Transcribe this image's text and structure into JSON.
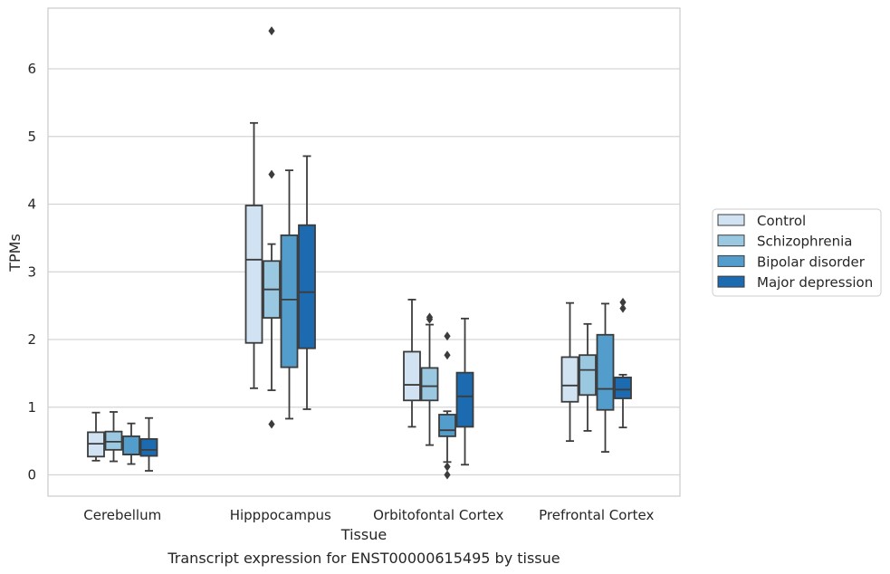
{
  "chart_data": {
    "type": "box",
    "xlabel": "Tissue",
    "ylabel": "TPMs",
    "caption": "Transcript expression for ENST00000615495 by tissue",
    "categories": [
      "Cerebellum",
      "Hipppocampus",
      "Orbitofontal Cortex",
      "Prefrontal Cortex"
    ],
    "y_ticks": [
      "0",
      "1",
      "2",
      "3",
      "4",
      "5",
      "6"
    ],
    "ylim": [
      -0.32,
      6.9
    ],
    "grid": "horizontal",
    "legend_position": "center-right",
    "series": [
      {
        "name": "Control",
        "color": "#d1e2f2",
        "boxes": [
          {
            "whisker_low": 0.21,
            "q1": 0.27,
            "median": 0.46,
            "q3": 0.63,
            "whisker_high": 0.92,
            "outliers": []
          },
          {
            "whisker_low": 1.28,
            "q1": 1.95,
            "median": 3.18,
            "q3": 3.98,
            "whisker_high": 5.2,
            "outliers": []
          },
          {
            "whisker_low": 0.71,
            "q1": 1.1,
            "median": 1.33,
            "q3": 1.82,
            "whisker_high": 2.59,
            "outliers": []
          },
          {
            "whisker_low": 0.5,
            "q1": 1.08,
            "median": 1.32,
            "q3": 1.74,
            "whisker_high": 2.54,
            "outliers": []
          }
        ]
      },
      {
        "name": "Schizophrenia",
        "color": "#9ac8e0",
        "boxes": [
          {
            "whisker_low": 0.2,
            "q1": 0.37,
            "median": 0.49,
            "q3": 0.64,
            "whisker_high": 0.93,
            "outliers": []
          },
          {
            "whisker_low": 1.25,
            "q1": 2.32,
            "median": 2.74,
            "q3": 3.16,
            "whisker_high": 3.41,
            "outliers": [
              6.56,
              4.44,
              0.75
            ]
          },
          {
            "whisker_low": 0.44,
            "q1": 1.1,
            "median": 1.31,
            "q3": 1.58,
            "whisker_high": 2.22,
            "outliers": [
              2.33,
              2.3
            ]
          },
          {
            "whisker_low": 0.65,
            "q1": 1.18,
            "median": 1.55,
            "q3": 1.77,
            "whisker_high": 2.23,
            "outliers": []
          }
        ]
      },
      {
        "name": "Bipolar disorder",
        "color": "#529dcc",
        "boxes": [
          {
            "whisker_low": 0.16,
            "q1": 0.3,
            "median": 0.3,
            "q3": 0.57,
            "whisker_high": 0.76,
            "outliers": []
          },
          {
            "whisker_low": 0.83,
            "q1": 1.59,
            "median": 2.59,
            "q3": 3.54,
            "whisker_high": 4.5,
            "outliers": []
          },
          {
            "whisker_low": 0.19,
            "q1": 0.57,
            "median": 0.66,
            "q3": 0.89,
            "whisker_high": 0.94,
            "outliers": [
              2.05,
              1.77,
              0.12,
              0.0
            ]
          },
          {
            "whisker_low": 0.34,
            "q1": 0.96,
            "median": 1.27,
            "q3": 2.07,
            "whisker_high": 2.53,
            "outliers": []
          }
        ]
      },
      {
        "name": "Major depression",
        "color": "#1c6aaf",
        "boxes": [
          {
            "whisker_low": 0.06,
            "q1": 0.28,
            "median": 0.37,
            "q3": 0.53,
            "whisker_high": 0.84,
            "outliers": []
          },
          {
            "whisker_low": 0.97,
            "q1": 1.87,
            "median": 2.7,
            "q3": 3.69,
            "whisker_high": 4.71,
            "outliers": []
          },
          {
            "whisker_low": 0.15,
            "q1": 0.71,
            "median": 1.16,
            "q3": 1.51,
            "whisker_high": 2.31,
            "outliers": []
          },
          {
            "whisker_low": 0.7,
            "q1": 1.13,
            "median": 1.26,
            "q3": 1.44,
            "whisker_high": 1.48,
            "outliers": [
              2.55,
              2.46
            ]
          }
        ]
      }
    ]
  }
}
